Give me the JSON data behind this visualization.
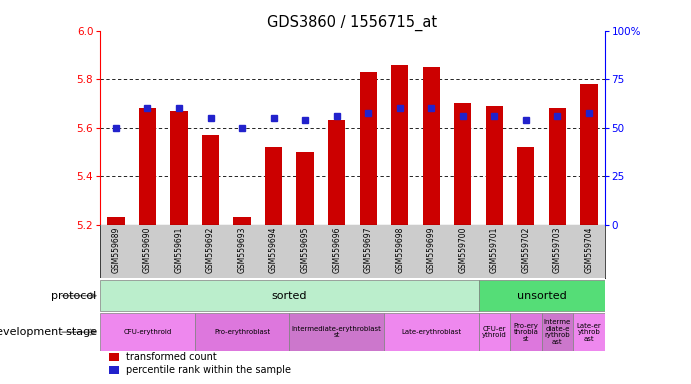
{
  "title": "GDS3860 / 1556715_at",
  "samples": [
    "GSM559689",
    "GSM559690",
    "GSM559691",
    "GSM559692",
    "GSM559693",
    "GSM559694",
    "GSM559695",
    "GSM559696",
    "GSM559697",
    "GSM559698",
    "GSM559699",
    "GSM559700",
    "GSM559701",
    "GSM559702",
    "GSM559703",
    "GSM559704"
  ],
  "bar_tops": [
    5.23,
    5.68,
    5.67,
    5.57,
    5.23,
    5.52,
    5.5,
    5.63,
    5.83,
    5.86,
    5.85,
    5.7,
    5.69,
    5.52,
    5.68,
    5.78
  ],
  "percentile_left": [
    5.6,
    5.68,
    5.68,
    5.64,
    5.6,
    5.64,
    5.63,
    5.65,
    5.66,
    5.68,
    5.68,
    5.65,
    5.65,
    5.63,
    5.65,
    5.66
  ],
  "ymin": 5.2,
  "ymax": 6.0,
  "bar_color": "#cc0000",
  "dot_color": "#2222cc",
  "sorted_color": "#bbeecc",
  "unsorted_color": "#55dd77",
  "dev_stage_labels": [
    "CFU-erythroid",
    "Pro-erythroblast",
    "Intermediate-erythroblast\nst",
    "Late-erythroblast",
    "CFU-er\nythroid",
    "Pro-ery\nthrobla\nst",
    "Interme\ndiate-e\nrythrob\nast",
    "Late-er\nythrob\nast"
  ],
  "dev_stage_starts": [
    0,
    3,
    6,
    9,
    12,
    13,
    14,
    15
  ],
  "dev_stage_ends": [
    3,
    6,
    9,
    12,
    13,
    14,
    15,
    16
  ],
  "dev_stage_colors": [
    "#ee88ee",
    "#dd77dd",
    "#cc77cc",
    "#ee88ee",
    "#ee88ee",
    "#dd77dd",
    "#cc77cc",
    "#ee88ee"
  ],
  "xtick_bg": "#cccccc",
  "legend_labels": [
    "transformed count",
    "percentile rank within the sample"
  ],
  "legend_colors": [
    "#cc0000",
    "#2222cc"
  ]
}
